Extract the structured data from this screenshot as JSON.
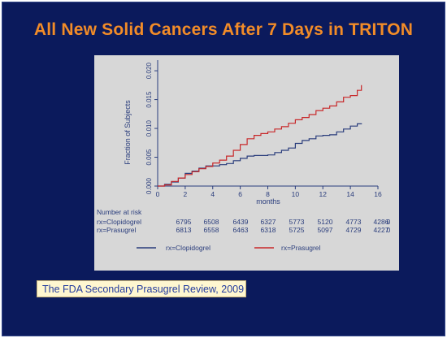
{
  "slide": {
    "title": "All New Solid Cancers  After 7 Days in TRITON",
    "source": "The FDA Secondary Prasugrel Review, 2009"
  },
  "colors": {
    "background": "#0b1a5c",
    "title": "#f28c28",
    "panel": "#d7d7d7",
    "clopidogrel": "#2a3d7c",
    "prasugrel": "#c8282a"
  },
  "chart_data": {
    "type": "line",
    "title": "",
    "xlabel": "months",
    "ylabel": "Fraction of Subjects",
    "xlim": [
      0,
      16
    ],
    "ylim": [
      0,
      0.021
    ],
    "xticks": [
      "0",
      "2",
      "4",
      "6",
      "8",
      "10",
      "12",
      "14",
      "16"
    ],
    "yticks": [
      "0.000",
      "0.005",
      "0.010",
      "0.015",
      "0.020"
    ],
    "grid": false,
    "legend": "bottom",
    "series": [
      {
        "name": "rx=Clopidogrel",
        "x": [
          0,
          0.5,
          1,
          1.5,
          2,
          2.5,
          3,
          3.5,
          4,
          4.5,
          5,
          5.5,
          6,
          6.5,
          7,
          7.5,
          8,
          8.5,
          9,
          9.5,
          10,
          10.5,
          11,
          11.5,
          12,
          12.5,
          13,
          13.5,
          14,
          14.5,
          14.8
        ],
        "y": [
          0,
          0.0003,
          0.0007,
          0.0014,
          0.0022,
          0.0026,
          0.0031,
          0.0035,
          0.0035,
          0.0037,
          0.0039,
          0.0044,
          0.0048,
          0.0052,
          0.0053,
          0.0053,
          0.0054,
          0.0058,
          0.0062,
          0.0066,
          0.0074,
          0.0079,
          0.0082,
          0.0087,
          0.0088,
          0.0089,
          0.0094,
          0.0099,
          0.0104,
          0.0108,
          0.0109
        ]
      },
      {
        "name": "rx=Prasugrel",
        "x": [
          0,
          0.5,
          1,
          1.5,
          2,
          2.5,
          3,
          3.5,
          4,
          4.5,
          5,
          5.5,
          6,
          6.5,
          7,
          7.5,
          8,
          8.5,
          9,
          9.5,
          10,
          10.5,
          11,
          11.5,
          12,
          12.5,
          13,
          13.5,
          14,
          14.5,
          14.8
        ],
        "y": [
          0,
          0.0002,
          0.0008,
          0.0014,
          0.002,
          0.0025,
          0.003,
          0.0034,
          0.004,
          0.0045,
          0.0052,
          0.0062,
          0.0072,
          0.0082,
          0.0088,
          0.0091,
          0.0094,
          0.0099,
          0.0103,
          0.0109,
          0.0115,
          0.0119,
          0.0124,
          0.0131,
          0.0135,
          0.0139,
          0.0146,
          0.0154,
          0.0157,
          0.0166,
          0.0175
        ]
      }
    ],
    "risk_table": {
      "heading": "Number at risk",
      "rows": [
        {
          "label": "rx=Clopidogrel",
          "values": [
            "6795",
            "6508",
            "6439",
            "6327",
            "5773",
            "5120",
            "4773",
            "4286",
            "0"
          ]
        },
        {
          "label": "rx=Prasugrel",
          "values": [
            "6813",
            "6558",
            "6463",
            "6318",
            "5725",
            "5097",
            "4729",
            "4227",
            "0"
          ]
        }
      ]
    }
  }
}
